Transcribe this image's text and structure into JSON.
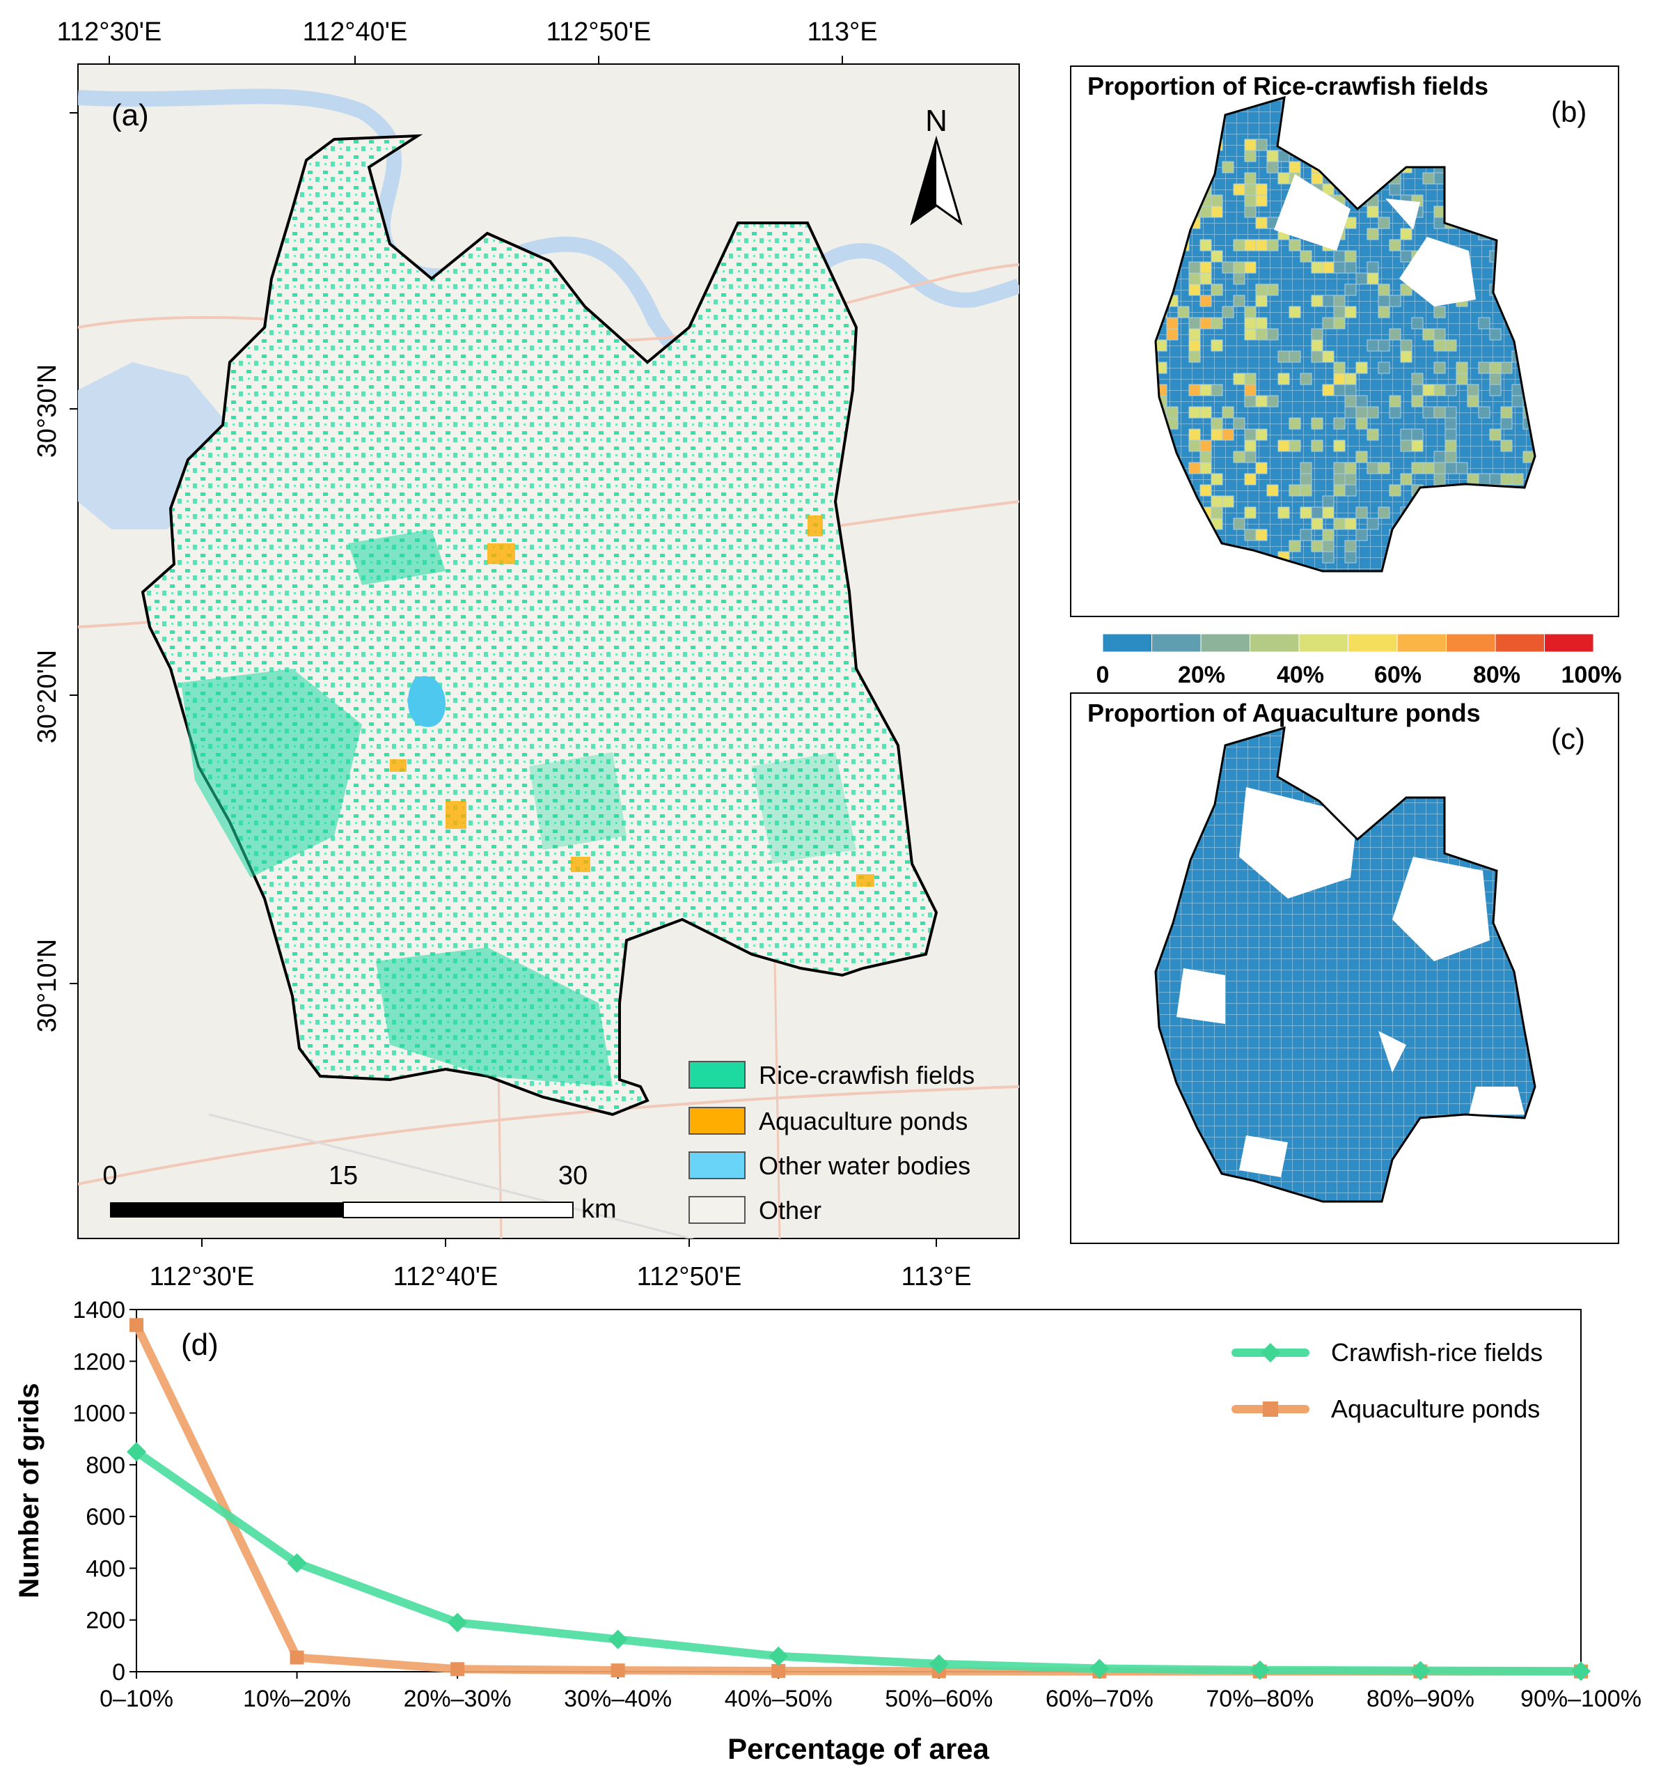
{
  "panel_a": {
    "label": "(a)",
    "north_label": "N",
    "lon_ticks_top": [
      "112°30'E",
      "112°40'E",
      "112°50'E",
      "113°E"
    ],
    "lon_ticks_bottom": [
      "112°30'E",
      "112°40'E",
      "112°50'E",
      "113°E"
    ],
    "lat_ticks": [
      "30°30'N",
      "30°20'N",
      "30°10'N"
    ],
    "scale_bar": {
      "ticks": [
        "0",
        "15",
        "30"
      ],
      "unit": "km"
    },
    "legend": [
      {
        "label": "Rice-crawfish fields",
        "color": "#1ed9a0"
      },
      {
        "label": "Aquaculture ponds",
        "color": "#ffad00"
      },
      {
        "label": "Other water bodies",
        "color": "#6ad3f8"
      },
      {
        "label": "Other",
        "color": "#f4f2ed"
      }
    ]
  },
  "panel_b": {
    "title": "Proportion of Rice-crawfish fields",
    "label": "(b)"
  },
  "panel_c": {
    "title": "Proportion of Aquaculture ponds",
    "label": "(c)"
  },
  "colorbar": {
    "tick_labels": [
      "0",
      "20%",
      "40%",
      "60%",
      "80%",
      "100%"
    ],
    "colors": [
      "#2b8cc4",
      "#5e9eb0",
      "#8eb39b",
      "#b4cb86",
      "#dbe177",
      "#f4de5c",
      "#fbb446",
      "#f78a39",
      "#ea5a2c",
      "#e01e23"
    ]
  },
  "chart_data": {
    "type": "line",
    "panel_label": "(d)",
    "xlabel": "Percentage of area",
    "ylabel": "Number of grids",
    "categories": [
      "0–10%",
      "10%–20%",
      "20%–30%",
      "30%–40%",
      "40%–50%",
      "50%–60%",
      "60%–70%",
      "70%–80%",
      "80%–90%",
      "90%–100%"
    ],
    "ylim": [
      0,
      1400
    ],
    "yticks": [
      0,
      200,
      400,
      600,
      800,
      1000,
      1200,
      1400
    ],
    "legend_position": "top-right",
    "series": [
      {
        "name": "Crawfish-rice fields",
        "color": "#4ddda0",
        "marker": "diamond",
        "values": [
          850,
          420,
          190,
          125,
          60,
          30,
          12,
          6,
          4,
          2
        ]
      },
      {
        "name": "Aquaculture ponds",
        "color": "#f0a36a",
        "marker": "square",
        "values": [
          1340,
          55,
          10,
          5,
          3,
          2,
          1,
          1,
          1,
          1
        ]
      }
    ]
  }
}
